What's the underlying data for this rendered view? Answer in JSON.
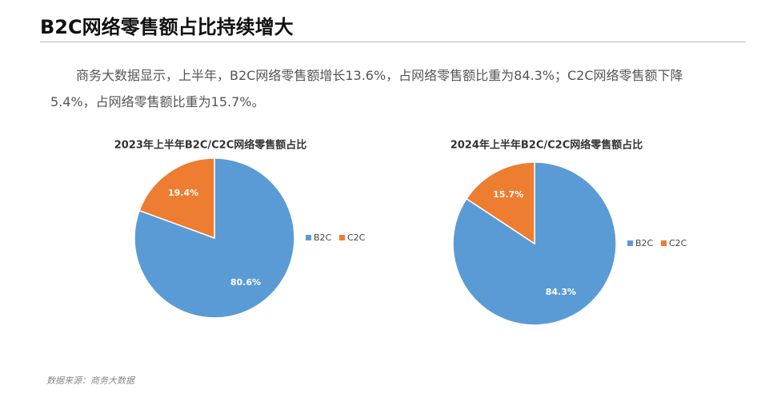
{
  "header": {
    "title": "B2C网络零售额占比持续增大"
  },
  "body": {
    "paragraph": "商务大数据显示，上半年，B2C网络零售额增长13.6%，占网络零售额比重为84.3%；C2C网络零售额下降5.4%，占网络零售额比重为15.7%。"
  },
  "chart_data": [
    {
      "type": "pie",
      "title": "2023年上半年B2C/C2C网络零售额占比",
      "categories": [
        "B2C",
        "C2C"
      ],
      "values": [
        80.6,
        19.4
      ],
      "value_labels": [
        "80.6%",
        "19.4%"
      ],
      "colors": [
        "#5b9bd5",
        "#ed7d31"
      ],
      "legend": "right"
    },
    {
      "type": "pie",
      "title": "2024年上半年B2C/C2C网络零售额占比",
      "categories": [
        "B2C",
        "C2C"
      ],
      "values": [
        84.3,
        15.7
      ],
      "value_labels": [
        "84.3%",
        "15.7%"
      ],
      "colors": [
        "#5b9bd5",
        "#ed7d31"
      ],
      "legend": "right"
    }
  ],
  "footer": {
    "source": "数据来源：商务大数据"
  }
}
